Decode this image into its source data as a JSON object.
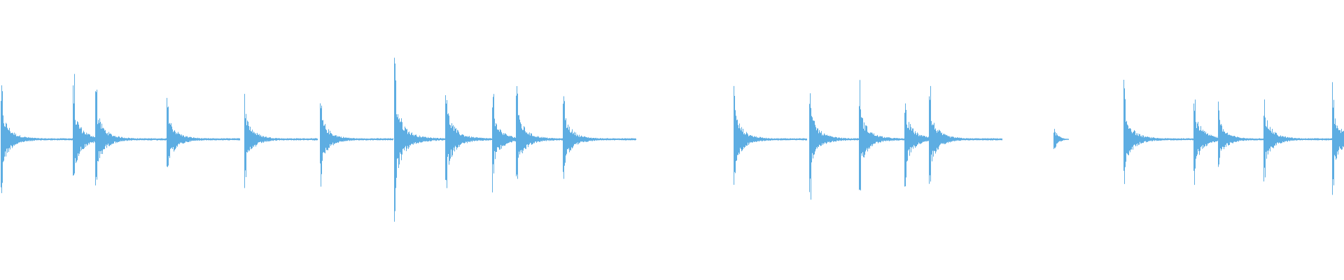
{
  "chart_data": {
    "type": "waveform",
    "color": "#5dade2",
    "background": "#ffffff",
    "amplitude_range": [
      -1,
      1
    ],
    "duration_fraction_unit": "clip",
    "onsets": [
      {
        "t": 0.0005,
        "amp": 0.46
      },
      {
        "t": 0.054,
        "amp": 0.48
      },
      {
        "t": 0.071,
        "amp": 0.48
      },
      {
        "t": 0.124,
        "amp": 0.4
      },
      {
        "t": 0.182,
        "amp": 0.4
      },
      {
        "t": 0.238,
        "amp": 0.39
      },
      {
        "t": 0.293,
        "amp": 0.69
      },
      {
        "t": 0.331,
        "amp": 0.54
      },
      {
        "t": 0.366,
        "amp": 0.39
      },
      {
        "t": 0.384,
        "amp": 0.47
      },
      {
        "t": 0.419,
        "amp": 0.42
      },
      {
        "t": 0.546,
        "amp": 0.45
      },
      {
        "t": 0.602,
        "amp": 0.46
      },
      {
        "t": 0.639,
        "amp": 0.47
      },
      {
        "t": 0.673,
        "amp": 0.42
      },
      {
        "t": 0.691,
        "amp": 0.43
      },
      {
        "t": 0.784,
        "amp": 0.09
      },
      {
        "t": 0.836,
        "amp": 0.45
      },
      {
        "t": 0.888,
        "amp": 0.43
      },
      {
        "t": 0.906,
        "amp": 0.3
      },
      {
        "t": 0.94,
        "amp": 0.4
      },
      {
        "t": 0.991,
        "amp": 0.45
      }
    ]
  }
}
